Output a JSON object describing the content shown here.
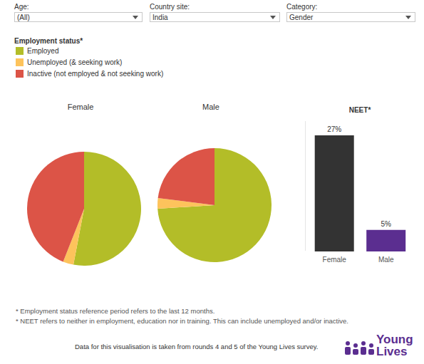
{
  "filters": [
    {
      "label": "Age:",
      "value": "(All)"
    },
    {
      "label": "Country site:",
      "value": "India"
    },
    {
      "label": "Category:",
      "value": "Gender"
    }
  ],
  "legend_title": "Employment status*",
  "chart_data": [
    {
      "type": "pie",
      "title": "Female",
      "categories": [
        "Employed",
        "Unemployed (& seeking work)",
        "Inactive (not employed & not seeking work)"
      ],
      "values": [
        53,
        3,
        44
      ],
      "colors": [
        "#b3bd28",
        "#fdc35c",
        "#dc5447"
      ],
      "data_labels": false
    },
    {
      "type": "pie",
      "title": "Male",
      "categories": [
        "Employed",
        "Unemployed (& seeking work)",
        "Inactive (not employed & not seeking work)"
      ],
      "values": [
        74,
        3,
        23
      ],
      "colors": [
        "#b3bd28",
        "#fdc35c",
        "#dc5447"
      ],
      "data_labels": false
    },
    {
      "type": "bar",
      "title": "NEET*",
      "categories": [
        "Female",
        "Male"
      ],
      "values": [
        27,
        5
      ],
      "value_labels": [
        "27%",
        "5%"
      ],
      "colors": [
        "#333333",
        "#5b2e90"
      ],
      "data_labels": true,
      "tick_labels": "x"
    }
  ],
  "notes": [
    "* Employment status reference period refers to the last 12 months.",
    "* NEET refers to neither in employment, education nor in training. This can include unemployed and/or inactive."
  ],
  "source": "Data for this visualisation is taken from rounds 4 and 5 of the Young Lives survey.",
  "logo": [
    "Young",
    "Lives"
  ]
}
